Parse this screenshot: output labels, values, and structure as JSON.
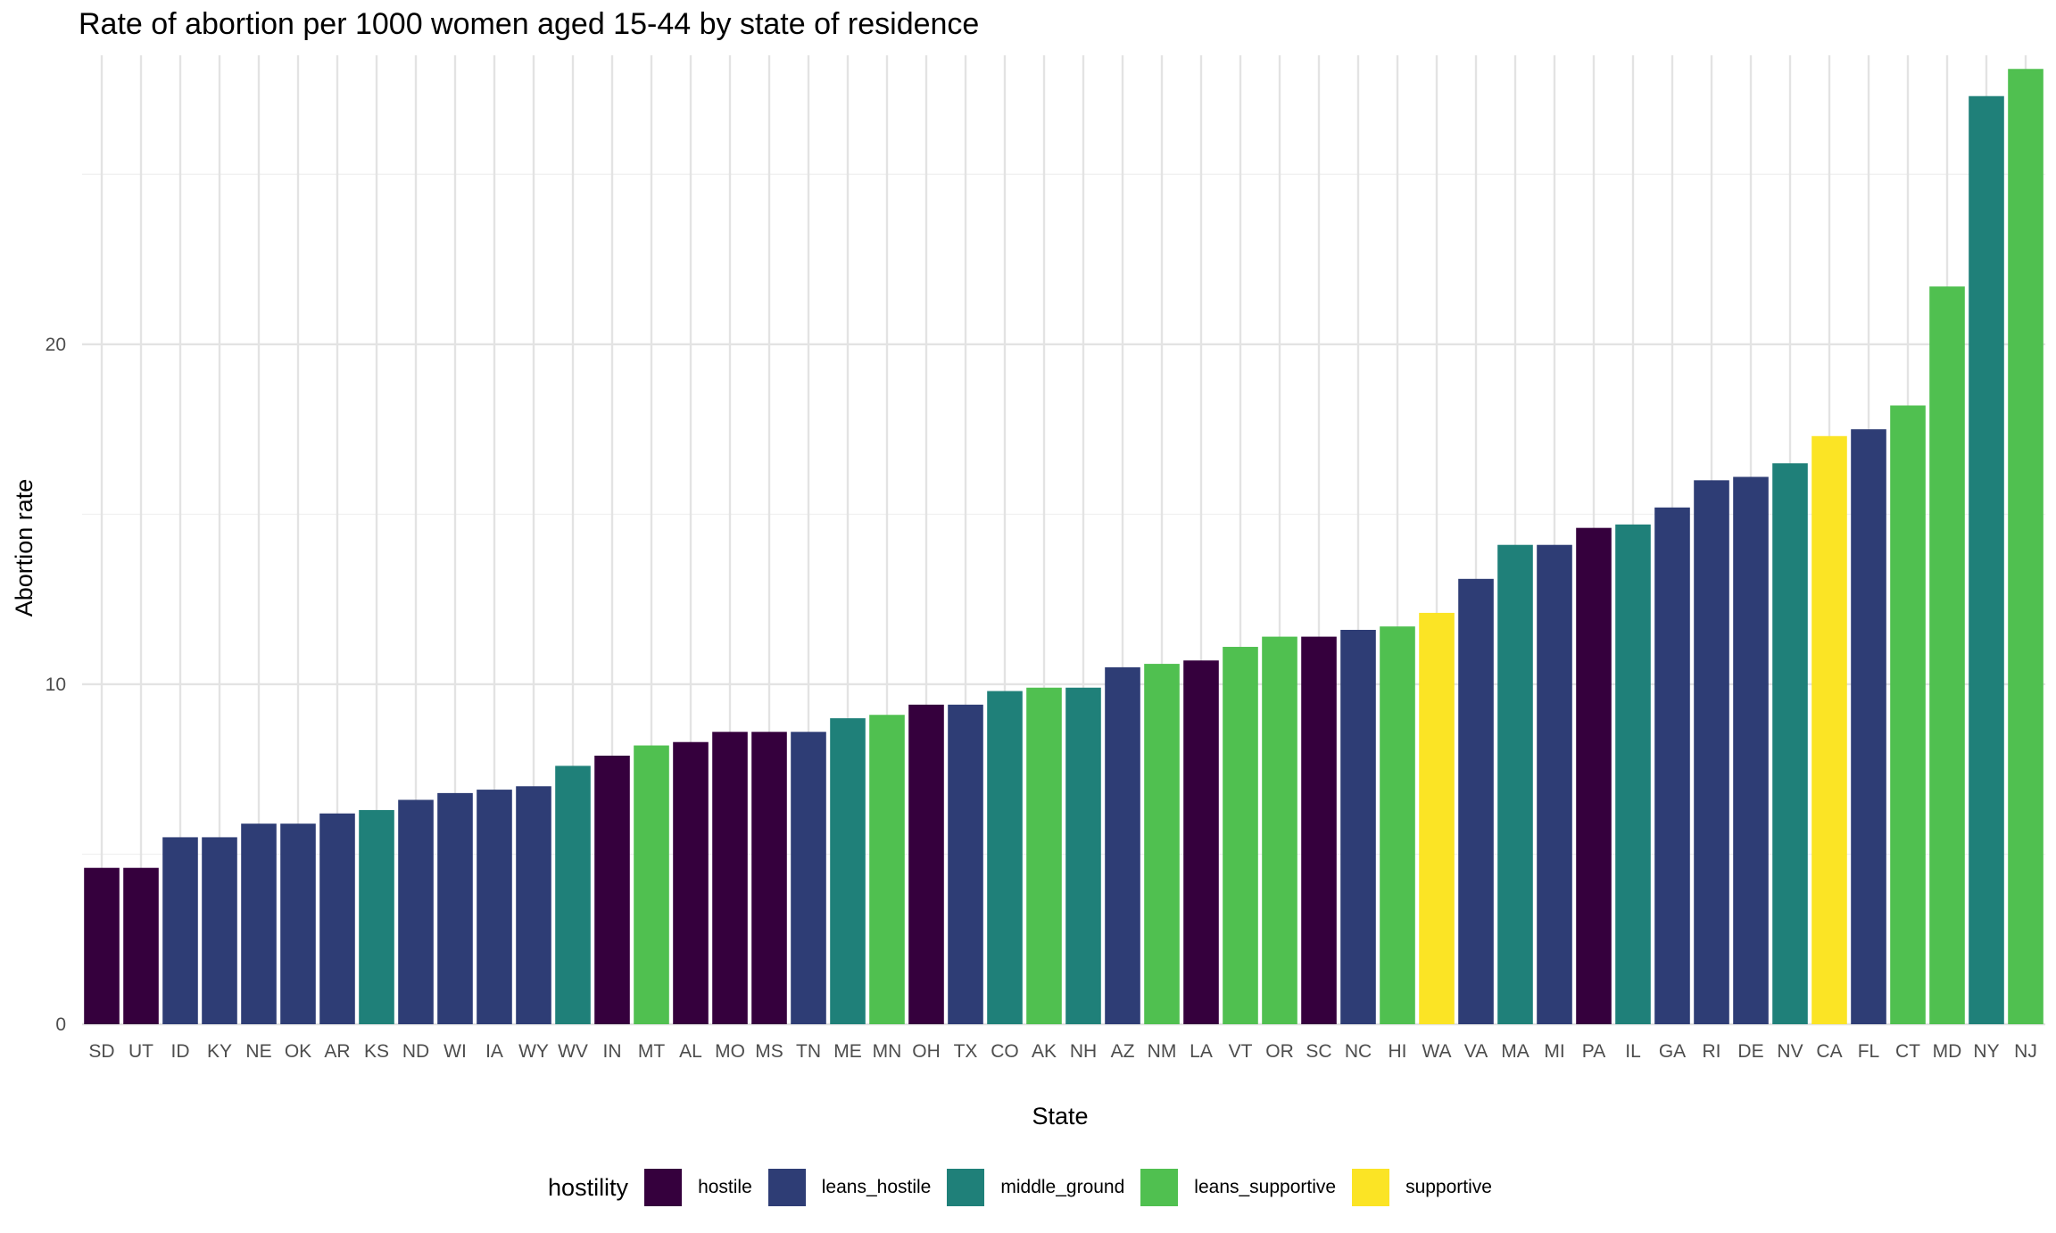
{
  "chart_data": {
    "type": "bar",
    "title": "Rate of abortion per 1000 women aged 15-44 by state of residence",
    "xlabel": "State",
    "ylabel": "Abortion rate",
    "ylim": [
      0,
      28.5
    ],
    "yticks": [
      0,
      10,
      20
    ],
    "grid": true,
    "legend": {
      "title": "hostility",
      "position": "bottom"
    },
    "groups": [
      {
        "name": "hostile",
        "color": "#35003D"
      },
      {
        "name": "leans_hostile",
        "color": "#2E3D75"
      },
      {
        "name": "middle_ground",
        "color": "#1F8079"
      },
      {
        "name": "leans_supportive",
        "color": "#50C050"
      },
      {
        "name": "supportive",
        "color": "#FBE425"
      }
    ],
    "categories": [
      "SD",
      "UT",
      "ID",
      "KY",
      "NE",
      "OK",
      "AR",
      "KS",
      "ND",
      "WI",
      "IA",
      "WY",
      "WV",
      "IN",
      "MT",
      "AL",
      "MO",
      "MS",
      "TN",
      "ME",
      "MN",
      "OH",
      "TX",
      "CO",
      "AK",
      "NH",
      "AZ",
      "NM",
      "LA",
      "VT",
      "OR",
      "SC",
      "NC",
      "HI",
      "WA",
      "VA",
      "MA",
      "MI",
      "PA",
      "IL",
      "GA",
      "RI",
      "DE",
      "NV",
      "CA",
      "FL",
      "CT",
      "MD",
      "NY",
      "NJ"
    ],
    "values": [
      4.6,
      4.6,
      5.5,
      5.5,
      5.9,
      5.9,
      6.2,
      6.3,
      6.6,
      6.8,
      6.9,
      7.0,
      7.6,
      7.9,
      8.2,
      8.3,
      8.6,
      8.6,
      8.6,
      9.0,
      9.1,
      9.4,
      9.4,
      9.8,
      9.9,
      9.9,
      10.5,
      10.6,
      10.7,
      11.1,
      11.4,
      11.4,
      11.6,
      11.7,
      12.1,
      13.1,
      14.1,
      14.1,
      14.6,
      14.7,
      15.2,
      16.0,
      16.1,
      16.5,
      17.3,
      17.5,
      18.2,
      21.7,
      27.3,
      28.1
    ],
    "hostility": [
      "hostile",
      "hostile",
      "leans_hostile",
      "leans_hostile",
      "leans_hostile",
      "leans_hostile",
      "leans_hostile",
      "middle_ground",
      "leans_hostile",
      "leans_hostile",
      "leans_hostile",
      "leans_hostile",
      "middle_ground",
      "hostile",
      "leans_supportive",
      "hostile",
      "hostile",
      "hostile",
      "leans_hostile",
      "middle_ground",
      "leans_supportive",
      "hostile",
      "leans_hostile",
      "middle_ground",
      "leans_supportive",
      "middle_ground",
      "leans_hostile",
      "leans_supportive",
      "hostile",
      "leans_supportive",
      "leans_supportive",
      "hostile",
      "leans_hostile",
      "leans_supportive",
      "supportive",
      "leans_hostile",
      "middle_ground",
      "leans_hostile",
      "hostile",
      "middle_ground",
      "leans_hostile",
      "leans_hostile",
      "leans_hostile",
      "middle_ground",
      "supportive",
      "leans_hostile",
      "leans_supportive",
      "leans_supportive",
      "middle_ground",
      "leans_supportive"
    ]
  }
}
